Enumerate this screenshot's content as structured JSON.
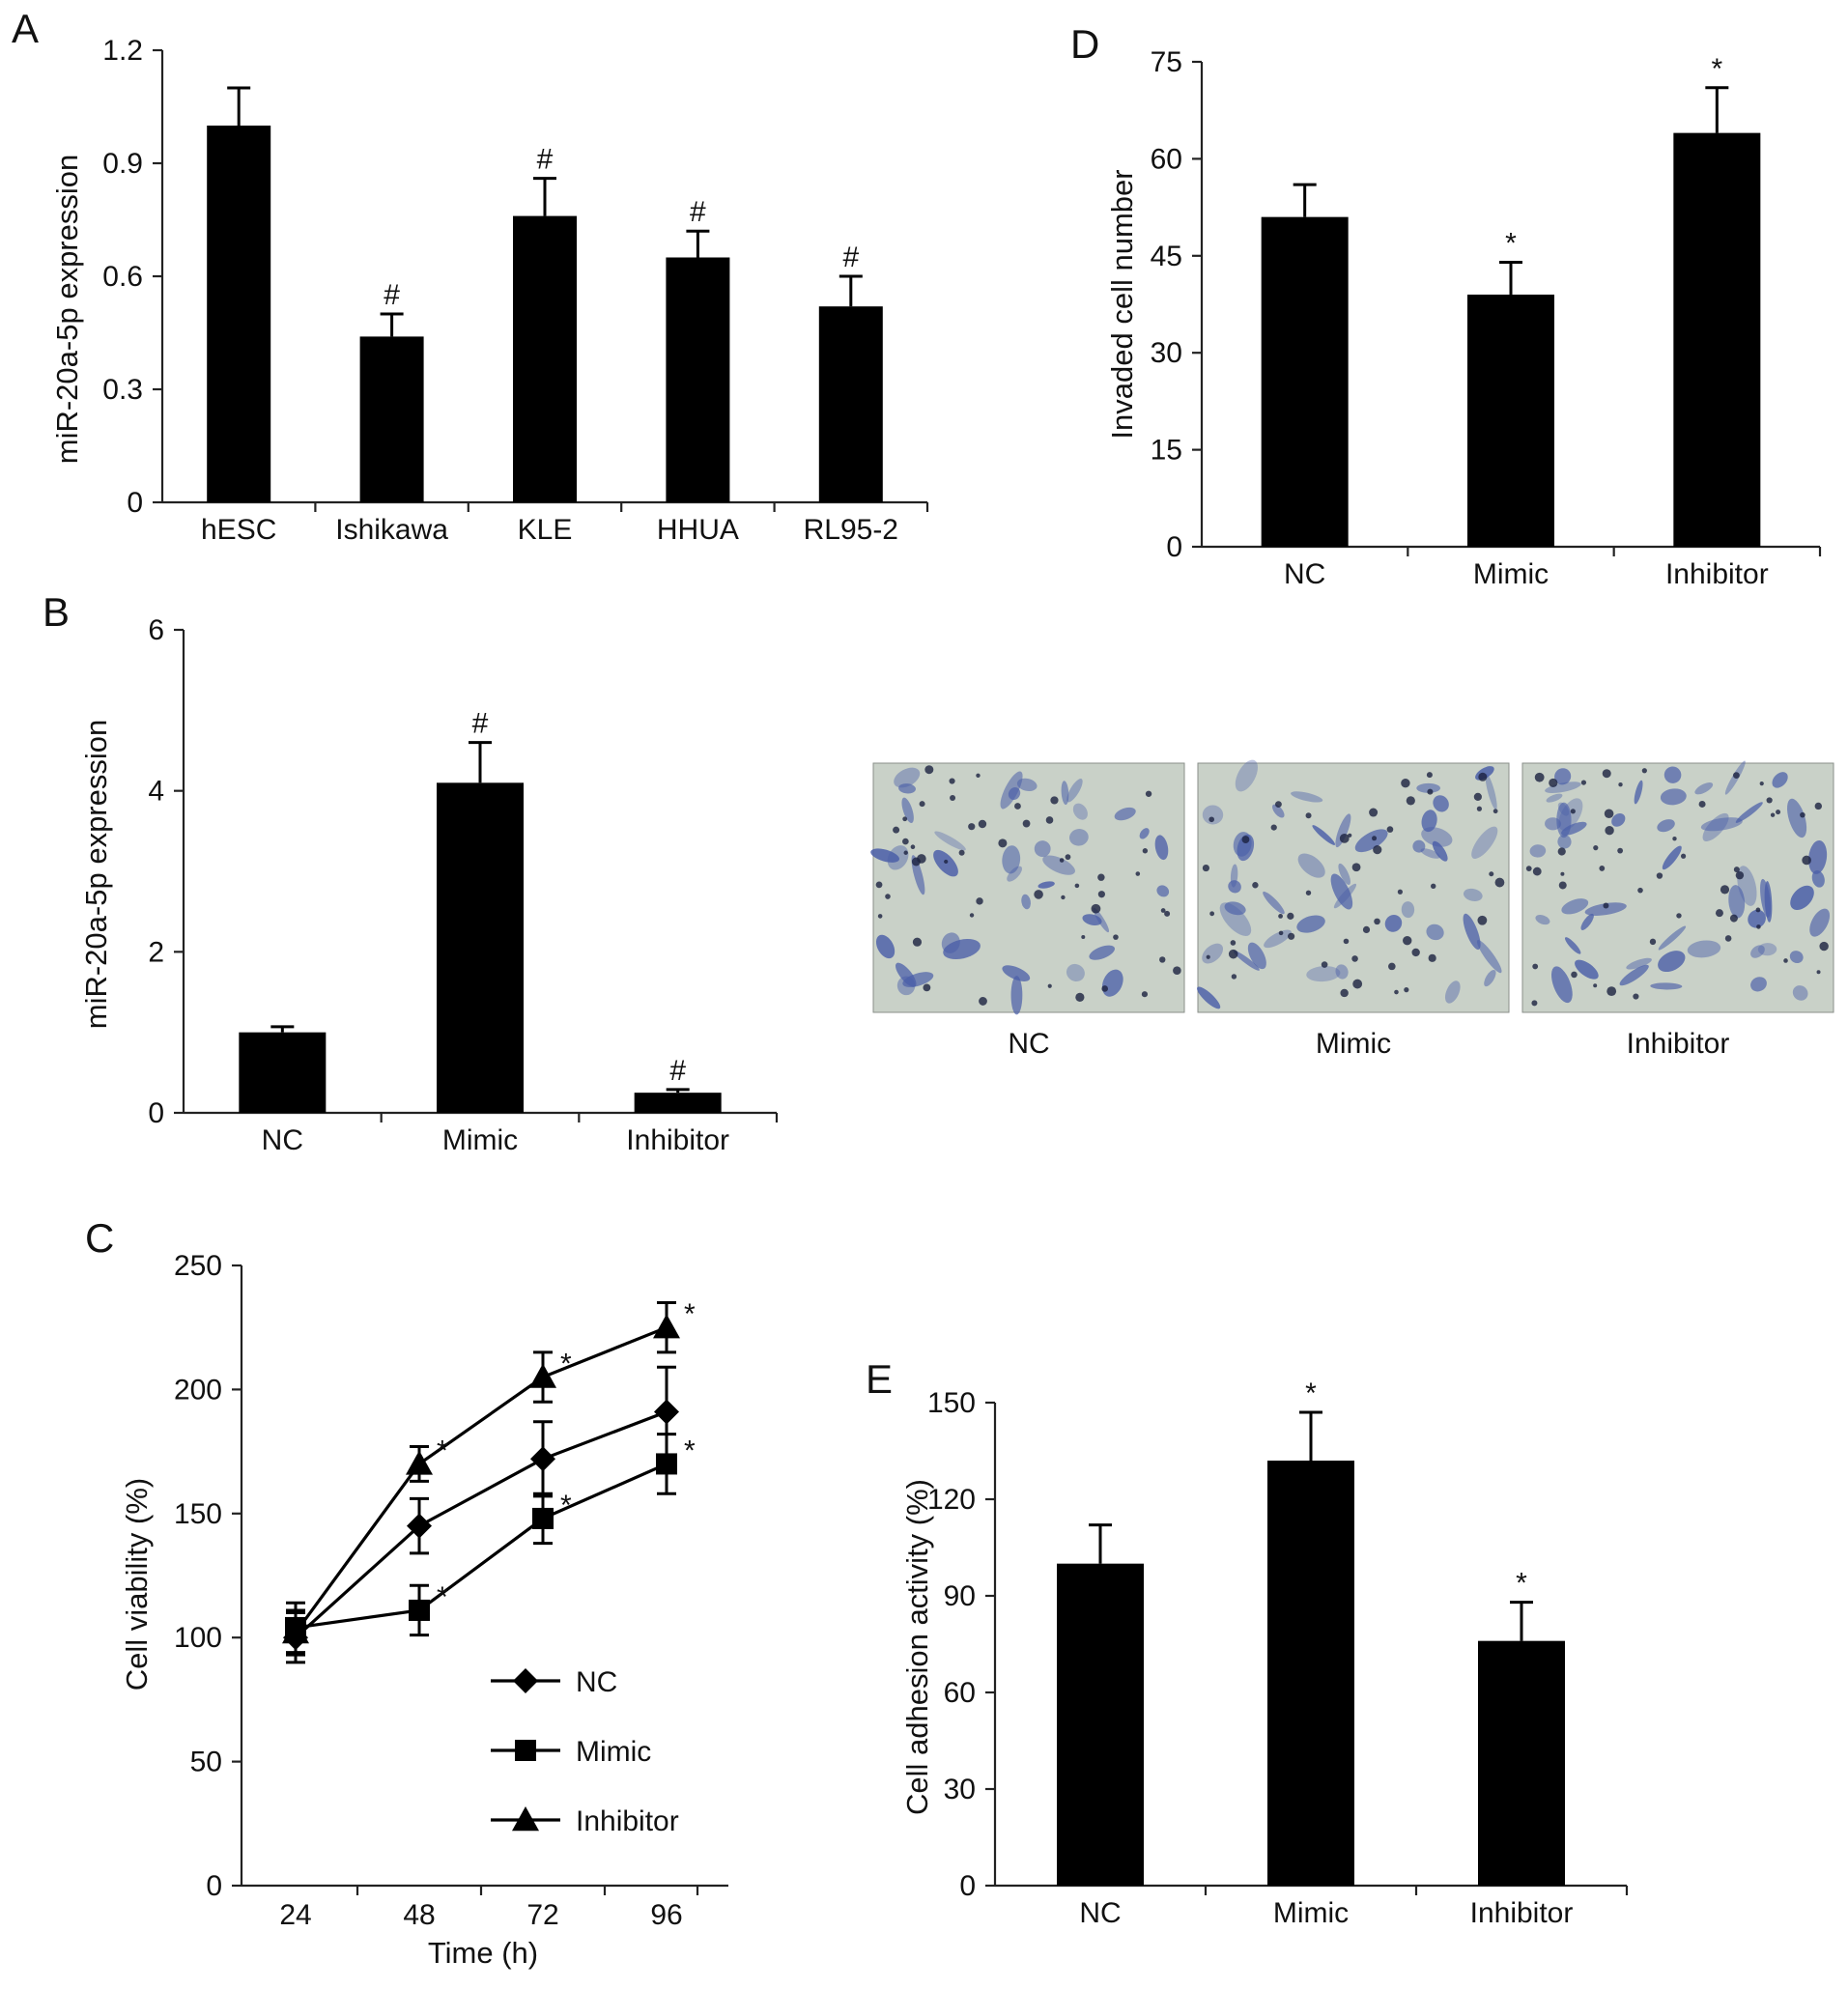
{
  "panels": {
    "A": {
      "letter": "A",
      "chart_data": {
        "type": "bar",
        "categories": [
          "hESC",
          "Ishikawa",
          "KLE",
          "HHUA",
          "RL95-2"
        ],
        "values": [
          1.0,
          0.44,
          0.76,
          0.65,
          0.52
        ],
        "errors": [
          0.1,
          0.06,
          0.1,
          0.07,
          0.08
        ],
        "significance": [
          "",
          "#",
          "#",
          "#",
          "#"
        ],
        "ylabel": "miR-20a-5p expression",
        "xlabel": "",
        "ylim": [
          0,
          1.2
        ],
        "yticks": [
          0,
          0.3,
          0.6,
          0.9,
          1.2
        ],
        "ytick_labels": [
          "0",
          "0.3",
          "0.6",
          "0.9",
          "1.2"
        ]
      }
    },
    "B": {
      "letter": "B",
      "chart_data": {
        "type": "bar",
        "categories": [
          "NC",
          "Mimic",
          "Inhibitor"
        ],
        "values": [
          1.0,
          4.1,
          0.25
        ],
        "errors": [
          0.07,
          0.5,
          0.04
        ],
        "significance": [
          "",
          "#",
          "#"
        ],
        "ylabel": "miR-20a-5p expression",
        "xlabel": "",
        "ylim": [
          0,
          6
        ],
        "yticks": [
          0,
          2,
          4,
          6
        ],
        "ytick_labels": [
          "0",
          "2",
          "4",
          "6"
        ]
      }
    },
    "C": {
      "letter": "C",
      "chart_data": {
        "type": "line",
        "x": [
          24,
          48,
          72,
          96
        ],
        "xtick_labels": [
          "24",
          "48",
          "72",
          "96"
        ],
        "xlabel": "Time (h)",
        "ylabel": "Cell viability (%)",
        "ylim": [
          0,
          250
        ],
        "yticks": [
          0,
          50,
          100,
          150,
          200,
          250
        ],
        "ytick_labels": [
          "0",
          "50",
          "100",
          "150",
          "200",
          "250"
        ],
        "legend_position": "bottom-right",
        "series": [
          {
            "name": "NC",
            "marker": "diamond",
            "values": [
              100,
              145,
              172,
              191
            ],
            "errors": [
              10,
              11,
              15,
              18
            ],
            "significance": [
              "",
              "",
              "",
              ""
            ]
          },
          {
            "name": "Mimic",
            "marker": "square",
            "values": [
              104,
              111,
              148,
              170
            ],
            "errors": [
              10,
              10,
              10,
              12
            ],
            "significance": [
              "",
              "*",
              "*",
              "*"
            ]
          },
          {
            "name": "Inhibitor",
            "marker": "triangle",
            "values": [
              102,
              170,
              205,
              225
            ],
            "errors": [
              9,
              7,
              10,
              10
            ],
            "significance": [
              "",
              "*",
              "*",
              "*"
            ]
          }
        ]
      }
    },
    "D": {
      "letter": "D",
      "chart_data": {
        "type": "bar",
        "categories": [
          "NC",
          "Mimic",
          "Inhibitor"
        ],
        "values": [
          51,
          39,
          64
        ],
        "errors": [
          5,
          5,
          7
        ],
        "significance": [
          "",
          "*",
          "*"
        ],
        "ylabel": "Invaded cell number",
        "xlabel": "",
        "ylim": [
          0,
          75
        ],
        "yticks": [
          0,
          15,
          30,
          45,
          60,
          75
        ],
        "ytick_labels": [
          "0",
          "15",
          "30",
          "45",
          "60",
          "75"
        ]
      },
      "micrographs": {
        "labels": [
          "NC",
          "Mimic",
          "Inhibitor"
        ],
        "stain_color": "#4a5ea8",
        "background_color": "#c9d1c8"
      }
    },
    "E": {
      "letter": "E",
      "chart_data": {
        "type": "bar",
        "categories": [
          "NC",
          "Mimic",
          "Inhibitor"
        ],
        "values": [
          100,
          132,
          76
        ],
        "errors": [
          12,
          15,
          12
        ],
        "significance": [
          "",
          "*",
          "*"
        ],
        "ylabel": "Cell adhesion activity (%)",
        "xlabel": "",
        "ylim": [
          0,
          150
        ],
        "yticks": [
          0,
          30,
          60,
          90,
          120,
          150
        ],
        "ytick_labels": [
          "0",
          "30",
          "60",
          "90",
          "120",
          "150"
        ]
      }
    }
  }
}
